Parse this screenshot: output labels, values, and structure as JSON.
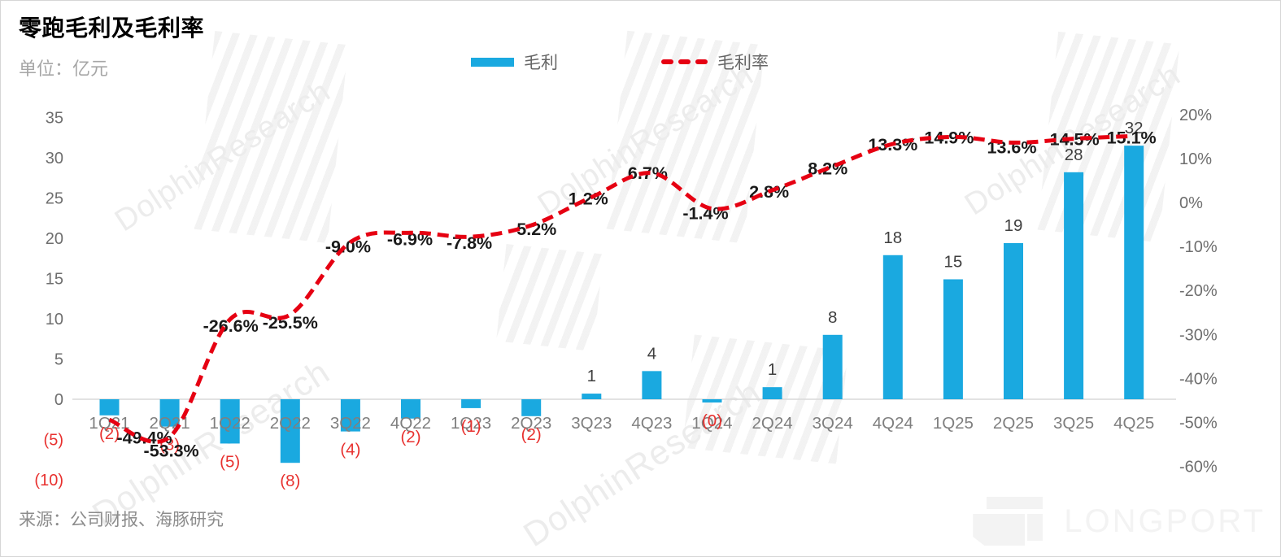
{
  "page": {
    "title": "零跑毛利及毛利率",
    "unit_label": "单位：亿元",
    "source": "来源：公司财报、海豚研究",
    "watermark_text": "DolphinResearch",
    "brand": "LONGPORT"
  },
  "legend": {
    "bar_label": "毛利",
    "line_label": "毛利率"
  },
  "colors": {
    "bar": "#1aa9e0",
    "line": "#e60012",
    "negative_label": "#e8312f",
    "positive_label": "#3f3f3f",
    "axis_text": "#6e6e6e",
    "category_text": "#7f7f7f",
    "pct_label": "#1a1a1a",
    "zero_line": "#d9d9d9"
  },
  "chart_data": {
    "type": "bar+line dual-axis combo",
    "title": "零跑毛利及毛利率",
    "unit": "亿元",
    "grid": false,
    "legend_position": "top",
    "categories": [
      "1Q21",
      "2Q21",
      "1Q22",
      "2Q22",
      "3Q22",
      "4Q22",
      "1Q23",
      "2Q23",
      "3Q23",
      "4Q23",
      "1Q24",
      "2Q24",
      "3Q24",
      "4Q24",
      "1Q25",
      "2Q25",
      "3Q25",
      "4Q25"
    ],
    "series": [
      {
        "name": "毛利",
        "type": "bar",
        "axis": "left",
        "unit": "亿元",
        "values": [
          -2,
          -3.4,
          -5.5,
          -7.9,
          -4,
          -2.4,
          -1.1,
          -2.1,
          0.7,
          3.5,
          -0.4,
          1.5,
          8,
          17.9,
          14.9,
          19.4,
          28.2,
          31.5
        ],
        "labels": [
          "(2)",
          "(3)",
          "(5)",
          "(8)",
          "(4)",
          "(2)",
          "(1)",
          "(2)",
          "1",
          "4",
          "(0)",
          "1",
          "8",
          "18",
          "15",
          "19",
          "28",
          "32"
        ]
      },
      {
        "name": "毛利率",
        "type": "line",
        "axis": "right",
        "unit": "%",
        "values": [
          -49.4,
          -53.3,
          -26.6,
          -25.5,
          -9.0,
          -6.9,
          -7.8,
          -5.2,
          1.2,
          6.7,
          -1.4,
          2.8,
          8.2,
          13.3,
          14.9,
          13.6,
          14.5,
          15.1
        ],
        "labels": [
          "-49.4%",
          "-53.3%",
          "-26.6%",
          "-25.5%",
          "-9.0%",
          "-6.9%",
          "-7.8%",
          "-5.2%",
          "1.2%",
          "6.7%",
          "-1.4%",
          "2.8%",
          "8.2%",
          "13.3%",
          "14.9%",
          "13.6%",
          "14.5%",
          "15.1%"
        ]
      }
    ],
    "left_axis": {
      "tick_labels": [
        "35",
        "30",
        "25",
        "20",
        "15",
        "10",
        "5",
        "0",
        "(5)",
        "(10)"
      ],
      "tick_values": [
        35,
        30,
        25,
        20,
        15,
        10,
        5,
        0,
        -5,
        -10
      ],
      "range": [
        -10,
        35
      ]
    },
    "right_axis": {
      "tick_labels": [
        "20%",
        "10%",
        "0%",
        "-10%",
        "-20%",
        "-30%",
        "-40%",
        "-50%",
        "-60%"
      ],
      "tick_values": [
        20,
        10,
        0,
        -10,
        -20,
        -30,
        -40,
        -50,
        -60
      ],
      "range": [
        -60,
        20
      ]
    }
  }
}
